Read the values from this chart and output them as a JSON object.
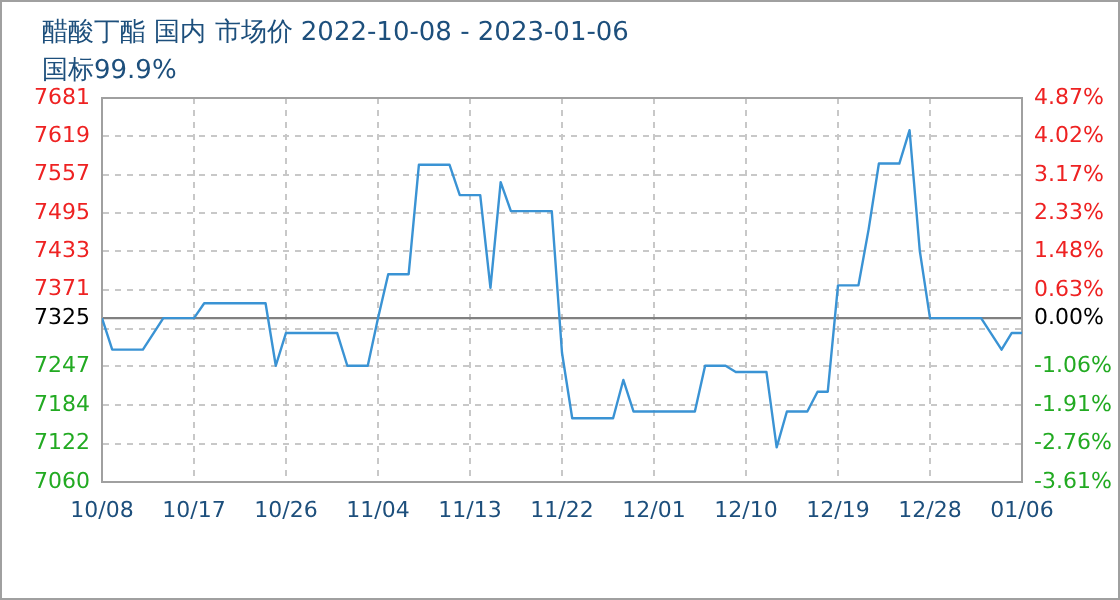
{
  "chart_data": {
    "type": "line",
    "title": "醋酸丁酯 国内 市场价 2022-10-08 - 2023-01-06",
    "subtitle": "国标99.9%",
    "xlim": [
      "2022-10-08",
      "2023-01-06"
    ],
    "xticks": [
      {
        "value": "2022-10-08",
        "label": "10/08"
      },
      {
        "value": "2022-10-17",
        "label": "10/17"
      },
      {
        "value": "2022-10-26",
        "label": "10/26"
      },
      {
        "value": "2022-11-04",
        "label": "11/04"
      },
      {
        "value": "2022-11-13",
        "label": "11/13"
      },
      {
        "value": "2022-11-22",
        "label": "11/22"
      },
      {
        "value": "2022-12-01",
        "label": "12/01"
      },
      {
        "value": "2022-12-10",
        "label": "12/10"
      },
      {
        "value": "2022-12-19",
        "label": "12/19"
      },
      {
        "value": "2022-12-28",
        "label": "12/28"
      },
      {
        "value": "2023-01-06",
        "label": "01/06"
      }
    ],
    "ylim": [
      7060,
      7681
    ],
    "yticks": [
      7060,
      7122,
      7184,
      7247,
      {
        "value": 7308,
        "label": null
      },
      7325,
      7371,
      7433,
      7495,
      7557,
      7619,
      7681
    ],
    "y2lim": [
      -3.61,
      4.87
    ],
    "y2ticks": [
      {
        "value": -3.61,
        "label": "-3.61%"
      },
      {
        "value": -2.76,
        "label": "-2.76%"
      },
      {
        "value": -1.91,
        "label": "-1.91%"
      },
      {
        "value": -1.06,
        "label": "-1.06%"
      },
      {
        "value": 0,
        "label": "0.00%"
      },
      {
        "value": 0.63,
        "label": "0.63%"
      },
      {
        "value": 1.48,
        "label": "1.48%"
      },
      {
        "value": 2.33,
        "label": "2.33%"
      },
      {
        "value": 3.17,
        "label": "3.17%"
      },
      {
        "value": 4.02,
        "label": "4.02%"
      },
      {
        "value": 4.87,
        "label": "4.87%"
      }
    ],
    "grid": true,
    "marker": "none",
    "line_style": "solid",
    "ref_lines": [
      {
        "axis": "y",
        "value": 7325,
        "color": "#808080"
      }
    ],
    "series": [
      {
        "color": "#3a93d4",
        "x": [
          "2022-10-08",
          "2022-10-09",
          "2022-10-12",
          "2022-10-14",
          "2022-10-17",
          "2022-10-18",
          "2022-10-24",
          "2022-10-25",
          "2022-10-26",
          "2022-10-31",
          "2022-11-01",
          "2022-11-03",
          "2022-11-04",
          "2022-11-05",
          "2022-11-07",
          "2022-11-08",
          "2022-11-11",
          "2022-11-12",
          "2022-11-14",
          "2022-11-15",
          "2022-11-16",
          "2022-11-17",
          "2022-11-21",
          "2022-11-22",
          "2022-11-23",
          "2022-11-27",
          "2022-11-28",
          "2022-11-29",
          "2022-12-05",
          "2022-12-06",
          "2022-12-08",
          "2022-12-09",
          "2022-12-12",
          "2022-12-13",
          "2022-12-14",
          "2022-12-16",
          "2022-12-17",
          "2022-12-18",
          "2022-12-19",
          "2022-12-21",
          "2022-12-22",
          "2022-12-23",
          "2022-12-25",
          "2022-12-26",
          "2022-12-27",
          "2022-12-28",
          "2023-01-02",
          "2023-01-04",
          "2023-01-05",
          "2023-01-06"
        ],
        "values": [
          7325,
          7274,
          7274,
          7325,
          7325,
          7349,
          7349,
          7248,
          7301,
          7301,
          7248,
          7248,
          7325,
          7396,
          7396,
          7573,
          7573,
          7524,
          7524,
          7374,
          7545,
          7498,
          7498,
          7269,
          7163,
          7163,
          7225,
          7174,
          7174,
          7248,
          7248,
          7238,
          7238,
          7116,
          7174,
          7174,
          7206,
          7206,
          7378,
          7378,
          7469,
          7575,
          7575,
          7629,
          7434,
          7325,
          7325,
          7274,
          7301,
          7301
        ]
      }
    ]
  }
}
